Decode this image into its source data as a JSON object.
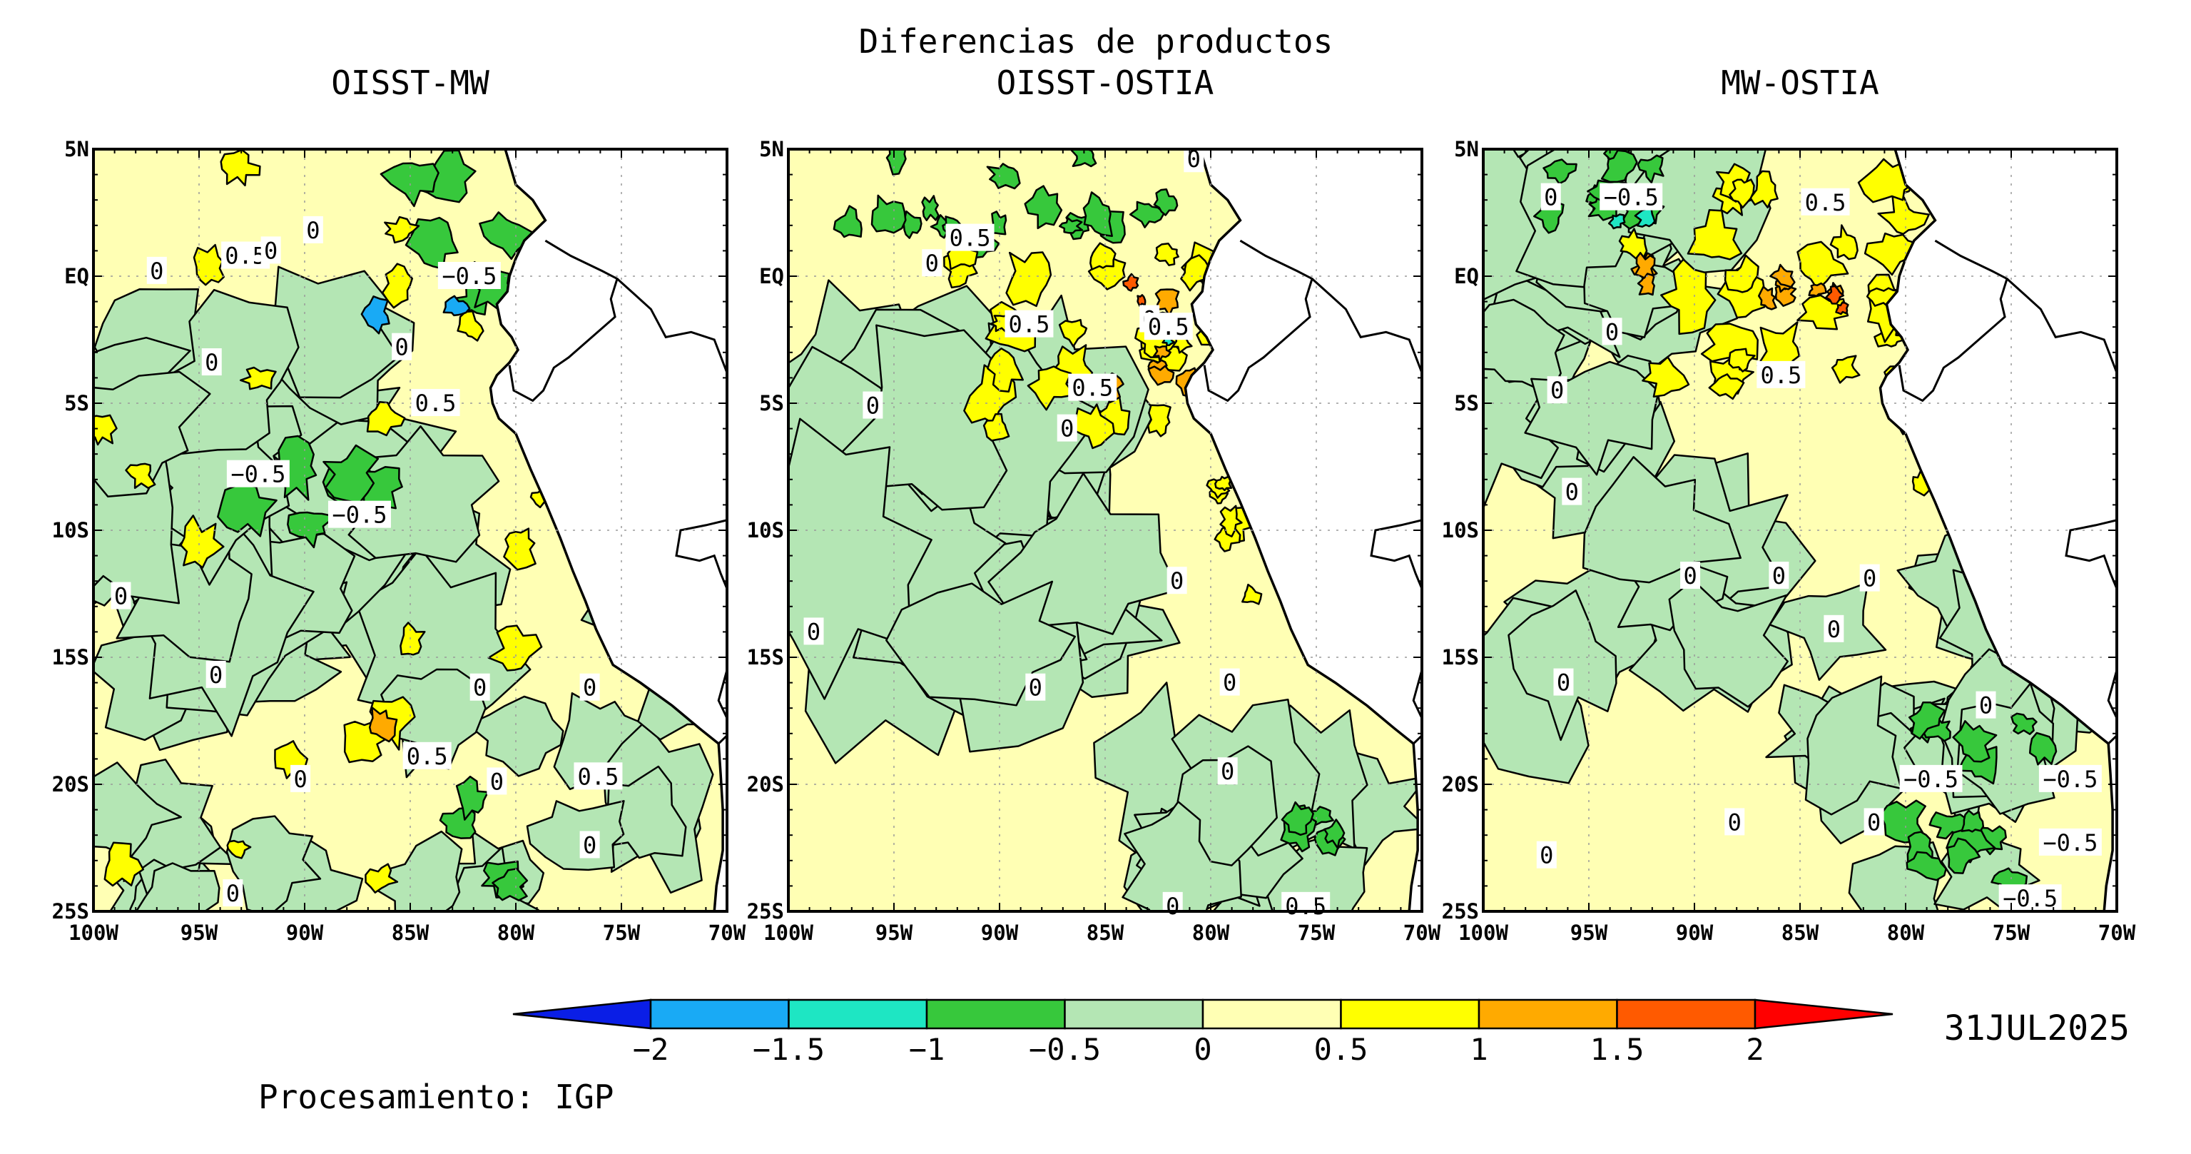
{
  "figure": {
    "supertitle": "Diferencias de productos",
    "date": "31JUL2025",
    "processing": "Procesamiento: IGP"
  },
  "map": {
    "lat_ticks": [
      "5N",
      "EQ",
      "5S",
      "10S",
      "15S",
      "20S",
      "25S"
    ],
    "lon_ticks": [
      "100W",
      "95W",
      "90W",
      "85W",
      "80W",
      "75W",
      "70W"
    ],
    "lon_range": [
      -100,
      -70
    ],
    "lat_range": [
      -25,
      5
    ]
  },
  "panels": [
    {
      "title": "OISST-MW",
      "labels": [
        {
          "text": "0.5",
          "lon": -92.8,
          "lat": 0.8
        },
        {
          "text": "0",
          "lon": -91.6,
          "lat": 1.0
        },
        {
          "text": "0",
          "lon": -97.0,
          "lat": 0.2
        },
        {
          "text": "0",
          "lon": -89.6,
          "lat": 1.8
        },
        {
          "text": "-0.5",
          "lon": -82.2,
          "lat": 0.0
        },
        {
          "text": "0",
          "lon": -85.4,
          "lat": -2.8
        },
        {
          "text": "0",
          "lon": -94.4,
          "lat": -3.4
        },
        {
          "text": "0.5",
          "lon": -83.8,
          "lat": -5.0
        },
        {
          "text": "-0.5",
          "lon": -92.2,
          "lat": -7.8
        },
        {
          "text": "-0.5",
          "lon": -87.4,
          "lat": -9.4
        },
        {
          "text": "0",
          "lon": -98.7,
          "lat": -12.6
        },
        {
          "text": "0",
          "lon": -94.2,
          "lat": -15.7
        },
        {
          "text": "0",
          "lon": -81.7,
          "lat": -16.2
        },
        {
          "text": "0",
          "lon": -76.5,
          "lat": -16.2
        },
        {
          "text": "0.5",
          "lon": -84.2,
          "lat": -18.9
        },
        {
          "text": "0",
          "lon": -90.2,
          "lat": -19.8
        },
        {
          "text": "0",
          "lon": -80.9,
          "lat": -19.9
        },
        {
          "text": "0.5",
          "lon": -76.1,
          "lat": -19.7
        },
        {
          "text": "0",
          "lon": -76.5,
          "lat": -22.4
        },
        {
          "text": "0",
          "lon": -93.4,
          "lat": -24.3
        }
      ]
    },
    {
      "title": "OISST-OSTIA",
      "labels": [
        {
          "text": "0",
          "lon": -80.8,
          "lat": 4.6
        },
        {
          "text": "0.5",
          "lon": -91.4,
          "lat": 1.5
        },
        {
          "text": "0",
          "lon": -93.2,
          "lat": 0.5
        },
        {
          "text": "0.5",
          "lon": -88.6,
          "lat": -1.9
        },
        {
          "text": "0",
          "lon": -82.9,
          "lat": -1.7
        },
        {
          "text": "0.5",
          "lon": -82.0,
          "lat": -2.0
        },
        {
          "text": "0.5",
          "lon": -85.6,
          "lat": -4.4
        },
        {
          "text": "0",
          "lon": -96.0,
          "lat": -5.1
        },
        {
          "text": "0",
          "lon": -86.8,
          "lat": -6.0
        },
        {
          "text": "0",
          "lon": -81.6,
          "lat": -12.0
        },
        {
          "text": "0",
          "lon": -98.8,
          "lat": -14.0
        },
        {
          "text": "0",
          "lon": -79.1,
          "lat": -16.0
        },
        {
          "text": "0",
          "lon": -88.3,
          "lat": -16.2
        },
        {
          "text": "0",
          "lon": -79.2,
          "lat": -19.5
        },
        {
          "text": "0",
          "lon": -81.8,
          "lat": -24.8
        },
        {
          "text": "0.5",
          "lon": -75.5,
          "lat": -24.8
        }
      ]
    },
    {
      "title": "MW-OSTIA",
      "labels": [
        {
          "text": "0",
          "lon": -96.8,
          "lat": 3.1
        },
        {
          "text": "-0.5",
          "lon": -93.0,
          "lat": 3.1
        },
        {
          "text": "0.5",
          "lon": -83.8,
          "lat": 2.9
        },
        {
          "text": "0",
          "lon": -93.9,
          "lat": -2.2
        },
        {
          "text": "0.5",
          "lon": -85.9,
          "lat": -3.9
        },
        {
          "text": "0",
          "lon": -96.5,
          "lat": -4.5
        },
        {
          "text": "0",
          "lon": -95.8,
          "lat": -8.5
        },
        {
          "text": "0",
          "lon": -90.2,
          "lat": -11.8
        },
        {
          "text": "0",
          "lon": -86.0,
          "lat": -11.8
        },
        {
          "text": "0",
          "lon": -83.4,
          "lat": -13.9
        },
        {
          "text": "0",
          "lon": -81.7,
          "lat": -11.9
        },
        {
          "text": "0",
          "lon": -96.2,
          "lat": -16.0
        },
        {
          "text": "0",
          "lon": -76.2,
          "lat": -16.9
        },
        {
          "text": "-0.5",
          "lon": -78.8,
          "lat": -19.8
        },
        {
          "text": "-0.5",
          "lon": -72.2,
          "lat": -19.8
        },
        {
          "text": "0",
          "lon": -88.1,
          "lat": -21.5
        },
        {
          "text": "0",
          "lon": -81.5,
          "lat": -21.5
        },
        {
          "text": "-0.5",
          "lon": -72.2,
          "lat": -22.3
        },
        {
          "text": "0",
          "lon": -97.0,
          "lat": -22.8
        },
        {
          "text": "-0.5",
          "lon": -74.1,
          "lat": -24.5
        }
      ]
    }
  ],
  "colorbar": {
    "levels": [
      "-2",
      "-1.5",
      "-1",
      "-0.5",
      "0",
      "0.5",
      "1",
      "1.5",
      "2"
    ],
    "colors": [
      "#0a1ee6",
      "#19aaf5",
      "#1ee6c3",
      "#37c83c",
      "#b4e6b4",
      "#ffffb4",
      "#ffff00",
      "#ffaa00",
      "#ff5a00",
      "#ff0000"
    ]
  }
}
